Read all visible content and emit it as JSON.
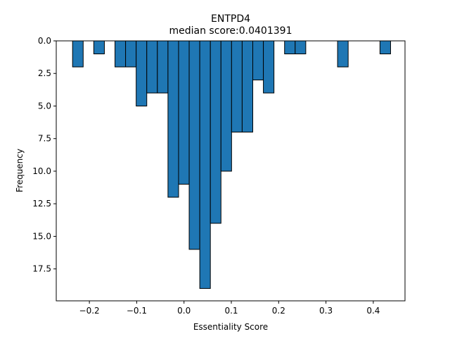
{
  "chart_data": {
    "type": "bar",
    "title": "ENTPD4",
    "subtitle": "median score:0.0401391",
    "xlabel": "Essentiality Score",
    "ylabel": "Frequency",
    "xlim": [
      -0.27,
      0.467
    ],
    "ylim": [
      0,
      19.95
    ],
    "y_inverted": true,
    "grid": false,
    "x_ticks": [
      -0.2,
      -0.1,
      0.0,
      0.1,
      0.2,
      0.3,
      0.4
    ],
    "x_tick_labels": [
      "−0.2",
      "−0.1",
      "0.0",
      "0.1",
      "0.2",
      "0.3",
      "0.4"
    ],
    "y_ticks": [
      0,
      2.5,
      5,
      7.5,
      10,
      12.5,
      15,
      17.5
    ],
    "y_tick_labels": [
      "0.0",
      "2.5",
      "5.0",
      "7.5",
      "10.0",
      "12.5",
      "15.0",
      "17.5"
    ],
    "bar_color": "#1f77b4",
    "edge_color": "#000000",
    "bin_start": -0.2355,
    "bin_width": 0.0224,
    "values": [
      2,
      0,
      1,
      0,
      2,
      2,
      5,
      4,
      4,
      12,
      11,
      16,
      19,
      14,
      10,
      7,
      7,
      3,
      4,
      0,
      1,
      1,
      0,
      0,
      0,
      2,
      0,
      0,
      0,
      1
    ]
  }
}
